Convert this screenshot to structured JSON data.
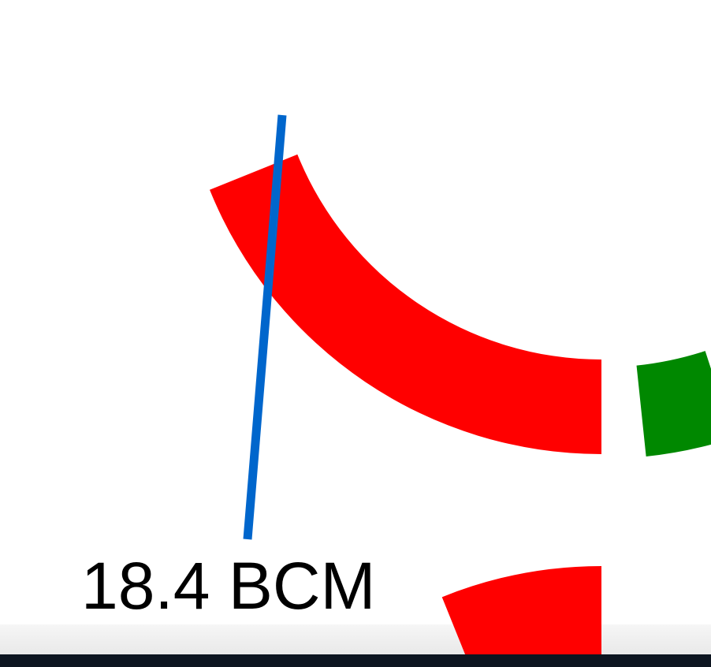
{
  "chart_data": {
    "type": "pie",
    "subtype": "donut",
    "annotation": {
      "label": "18.4 BCM"
    },
    "segments": [
      {
        "color": "#ff0000"
      },
      {
        "color": "#008800"
      },
      {
        "color": "#ff0000"
      }
    ],
    "callout_color": "#0066cc"
  }
}
